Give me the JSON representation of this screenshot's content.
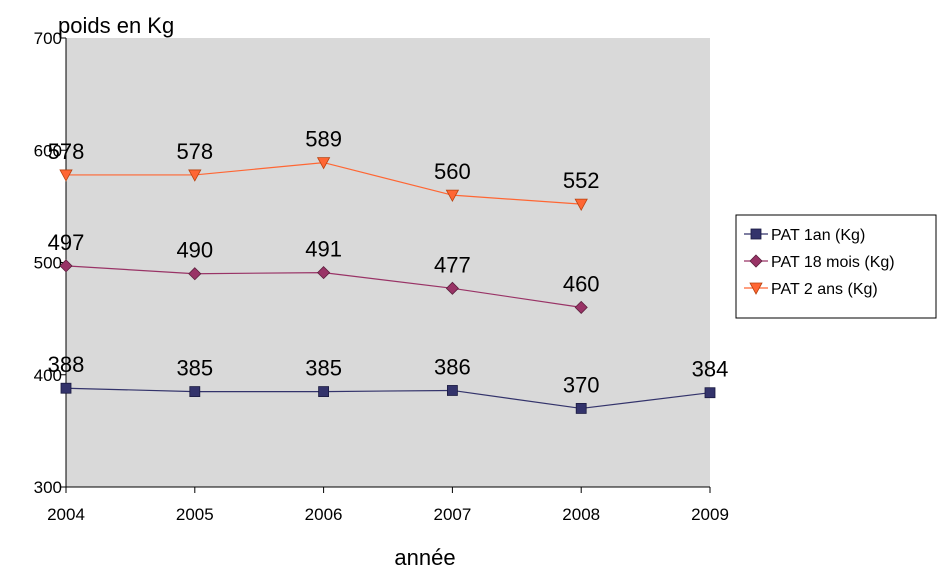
{
  "chart_data": {
    "type": "line",
    "ylabel": "poids en Kg",
    "xlabel": "année",
    "x": [
      "2004",
      "2005",
      "2006",
      "2007",
      "2008",
      "2009"
    ],
    "ylim": [
      300,
      700
    ],
    "yticks": [
      "300",
      "400",
      "500",
      "600",
      "700"
    ],
    "grid": false,
    "plot_background": "#d9d9d9",
    "legend_position": "right",
    "series": [
      {
        "name": "PAT 1an (Kg)",
        "color": "#33336b",
        "marker": "square",
        "values": [
          388,
          385,
          385,
          386,
          370,
          384
        ]
      },
      {
        "name": "PAT 18 mois (Kg)",
        "color": "#993366",
        "marker": "diamond",
        "values": [
          497,
          490,
          491,
          477,
          460,
          null
        ]
      },
      {
        "name": "PAT 2 ans (Kg)",
        "color": "#ff6633",
        "marker": "triangle-down",
        "values": [
          578,
          578,
          589,
          560,
          552,
          null
        ]
      }
    ]
  }
}
